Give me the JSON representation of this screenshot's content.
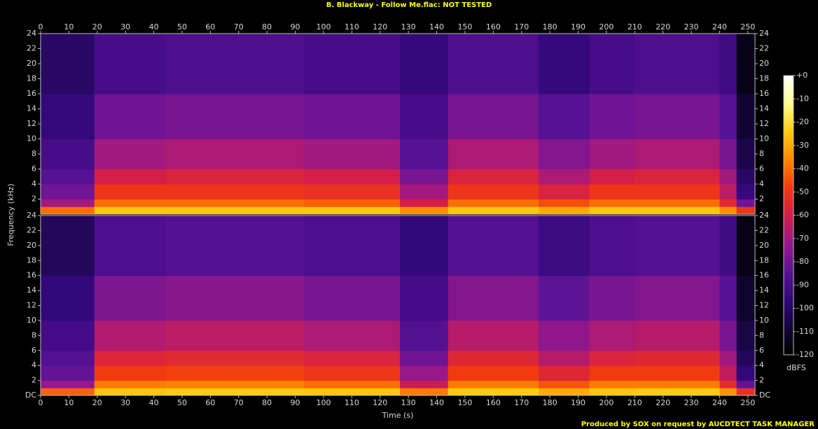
{
  "title": "B. Blackway - Follow Me.flac: NOT TESTED",
  "footer": "Produced by SOX on request by AUCDTECT TASK MANAGER",
  "colorbar": {
    "label": "dBFS",
    "lim": [
      -120,
      0
    ],
    "ticks": [
      {
        "value": 0,
        "label": "+0"
      },
      -10,
      -20,
      -30,
      -40,
      -50,
      -60,
      -70,
      -80,
      -90,
      -100,
      -110,
      -120
    ],
    "colormap": [
      "#000000",
      "#14053a",
      "#32087a",
      "#5a1296",
      "#98188a",
      "#d41e48",
      "#f23a10",
      "#ff8800",
      "#ffcc10",
      "#ffff90",
      "#ffffff"
    ]
  },
  "chart_data": [
    {
      "type": "heatmap",
      "y_label": "Frequency (kHz)",
      "xlim": [
        0,
        252.5
      ],
      "xticks": [
        0,
        10,
        20,
        30,
        40,
        50,
        60,
        70,
        80,
        90,
        100,
        110,
        120,
        130,
        140,
        150,
        160,
        170,
        180,
        190,
        200,
        210,
        220,
        230,
        240,
        250
      ],
      "ylim": [
        0,
        24
      ],
      "yticks": [
        2,
        4,
        6,
        8,
        10,
        12,
        14,
        16,
        18,
        20,
        22,
        24
      ],
      "x_bins": [
        0,
        19,
        44,
        93,
        127,
        144,
        176,
        194,
        210,
        240,
        246,
        252.5
      ],
      "y_bins": [
        0,
        1,
        2,
        4,
        6,
        10,
        16,
        24
      ],
      "values": [
        [
          -40,
          -70,
          -80,
          -85,
          -90,
          -95,
          -100
        ],
        [
          -25,
          -40,
          -50,
          -60,
          -70,
          -80,
          -90
        ],
        [
          -25,
          -40,
          -50,
          -58,
          -68,
          -78,
          -88
        ],
        [
          -25,
          -42,
          -52,
          -60,
          -70,
          -80,
          -90
        ],
        [
          -35,
          -60,
          -70,
          -78,
          -85,
          -90,
          -95
        ],
        [
          -25,
          -40,
          -50,
          -58,
          -68,
          -78,
          -88
        ],
        [
          -30,
          -45,
          -58,
          -68,
          -76,
          -85,
          -95
        ],
        [
          -25,
          -40,
          -50,
          -60,
          -70,
          -80,
          -90
        ],
        [
          -25,
          -40,
          -50,
          -58,
          -68,
          -78,
          -88
        ],
        [
          -35,
          -55,
          -65,
          -70,
          -78,
          -85,
          -92
        ],
        [
          -50,
          -80,
          -95,
          -100,
          -105,
          -110,
          -115
        ]
      ]
    },
    {
      "type": "heatmap",
      "x_label": "Time (s)",
      "xlim": [
        0,
        252.5
      ],
      "xticks": [
        0,
        10,
        20,
        30,
        40,
        50,
        60,
        70,
        80,
        90,
        100,
        110,
        120,
        130,
        140,
        150,
        160,
        170,
        180,
        190,
        200,
        210,
        220,
        230,
        240,
        250
      ],
      "ylim": [
        0,
        24
      ],
      "yticks": [
        {
          "value": 0,
          "label": "DC"
        },
        2,
        4,
        6,
        8,
        10,
        12,
        14,
        16,
        18,
        20,
        22,
        24
      ],
      "x_bins": [
        0,
        19,
        44,
        93,
        127,
        144,
        176,
        194,
        210,
        240,
        246,
        252.5
      ],
      "y_bins": [
        0,
        1,
        2,
        4,
        6,
        10,
        16,
        24
      ],
      "values": [
        [
          -42,
          -72,
          -82,
          -86,
          -91,
          -96,
          -102
        ],
        [
          -25,
          -38,
          -48,
          -57,
          -67,
          -77,
          -88
        ],
        [
          -24,
          -37,
          -47,
          -55,
          -65,
          -75,
          -86
        ],
        [
          -25,
          -40,
          -50,
          -58,
          -68,
          -78,
          -88
        ],
        [
          -38,
          -62,
          -72,
          -80,
          -86,
          -91,
          -96
        ],
        [
          -24,
          -38,
          -48,
          -56,
          -66,
          -76,
          -86
        ],
        [
          -30,
          -44,
          -56,
          -66,
          -74,
          -83,
          -93
        ],
        [
          -25,
          -38,
          -48,
          -58,
          -68,
          -78,
          -88
        ],
        [
          -24,
          -38,
          -48,
          -56,
          -66,
          -76,
          -86
        ],
        [
          -34,
          -54,
          -64,
          -70,
          -78,
          -85,
          -92
        ],
        [
          -52,
          -82,
          -96,
          -102,
          -106,
          -111,
          -116
        ]
      ]
    }
  ]
}
